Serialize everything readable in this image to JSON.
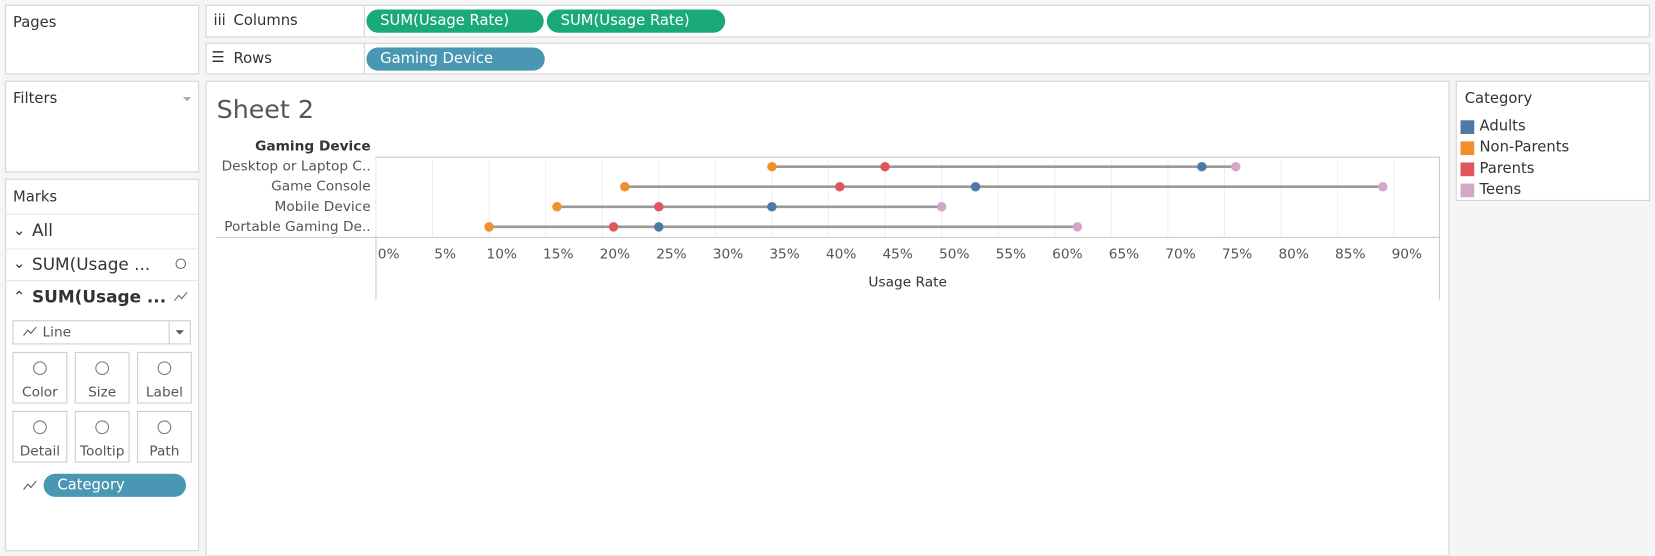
{
  "ui": {
    "pages": "Pages",
    "columns_label": "Columns",
    "columns_pills": [
      "SUM(Usage Rate)",
      "SUM(Usage Rate)"
    ],
    "rows_label": "Rows",
    "rows_pills": [
      "Gaming Device"
    ],
    "filters": "Filters",
    "marks": "Marks",
    "mark_cards": [
      "All",
      "SUM(Usage ...",
      "SUM(Usage ..."
    ],
    "mark_type": "Line",
    "mark_buttons": [
      "Color",
      "Size",
      "Label",
      "Detail",
      "Tooltip",
      "Path"
    ],
    "mark_pill": "Category",
    "sheet_title": "Sheet 2",
    "legend_title": "Category"
  },
  "chart_data": {
    "type": "dumbbell",
    "row_header": "Gaming Device",
    "categories": [
      "Desktop or Laptop C..",
      "Game Console",
      "Mobile Device",
      "Portable Gaming De.."
    ],
    "series": [
      {
        "name": "Adults",
        "color": "#4e79a7",
        "values": [
          73,
          53,
          35,
          25
        ]
      },
      {
        "name": "Non-Parents",
        "color": "#f28e2b",
        "values": [
          35,
          22,
          16,
          10
        ]
      },
      {
        "name": "Parents",
        "color": "#e15759",
        "values": [
          45,
          41,
          25,
          21
        ]
      },
      {
        "name": "Teens",
        "color": "#d4a6c8",
        "values": [
          76,
          89,
          50,
          62
        ]
      }
    ],
    "line_color": "#999999",
    "x_label": "Usage Rate",
    "xlim": [
      0,
      94
    ],
    "xticks": [
      {
        "value": 0,
        "label": "0%"
      },
      {
        "value": 5,
        "label": "5%"
      },
      {
        "value": 10,
        "label": "10%"
      },
      {
        "value": 15,
        "label": "15%"
      },
      {
        "value": 20,
        "label": "20%"
      },
      {
        "value": 25,
        "label": "25%"
      },
      {
        "value": 30,
        "label": "30%"
      },
      {
        "value": 35,
        "label": "35%"
      },
      {
        "value": 40,
        "label": "40%"
      },
      {
        "value": 45,
        "label": "45%"
      },
      {
        "value": 50,
        "label": "50%"
      },
      {
        "value": 55,
        "label": "55%"
      },
      {
        "value": 60,
        "label": "60%"
      },
      {
        "value": 65,
        "label": "65%"
      },
      {
        "value": 70,
        "label": "70%"
      },
      {
        "value": 75,
        "label": "75%"
      },
      {
        "value": 80,
        "label": "80%"
      },
      {
        "value": 85,
        "label": "85%"
      },
      {
        "value": 90,
        "label": "90%"
      }
    ],
    "grid": true
  }
}
